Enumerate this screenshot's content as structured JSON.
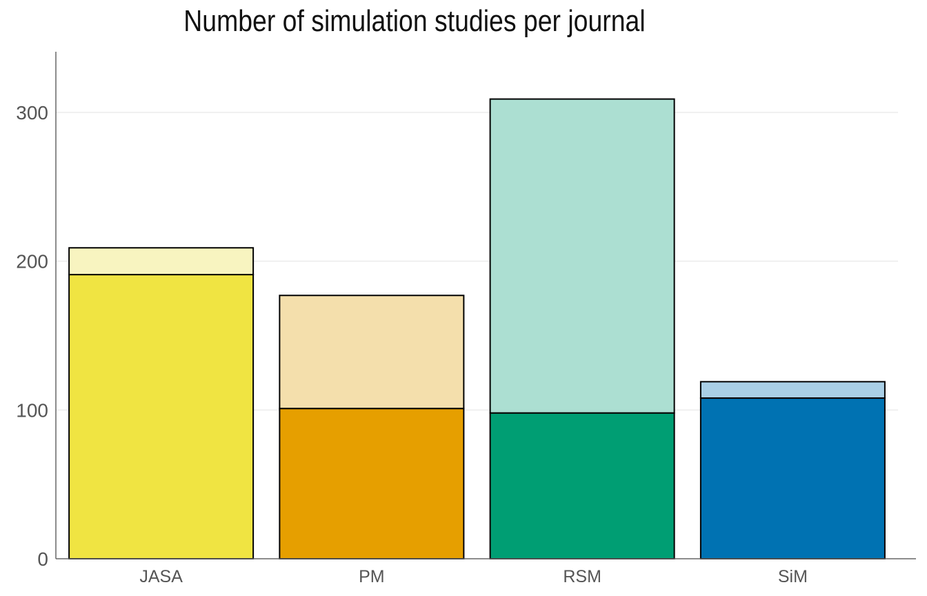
{
  "chart_data": {
    "type": "bar",
    "title": "Number of simulation studies per journal",
    "xlabel": "",
    "ylabel": "",
    "categories": [
      "JASA",
      "PM",
      "RSM",
      "SiM"
    ],
    "series": [
      {
        "values": [
          191,
          101,
          98,
          108
        ]
      },
      {
        "values": [
          18,
          76,
          211,
          11
        ]
      }
    ],
    "totals": [
      209,
      177,
      309,
      119
    ],
    "colors": {
      "dark": [
        "#F0E442",
        "#E69F00",
        "#009E73",
        "#0072B2"
      ],
      "light": [
        "#F8F4C0",
        "#F4DFAC",
        "#ACDFD2",
        "#A9CFE6"
      ]
    },
    "yticks": [
      0,
      100,
      200,
      300
    ],
    "ylim": [
      0,
      340
    ],
    "grid": true,
    "legend": "none"
  }
}
